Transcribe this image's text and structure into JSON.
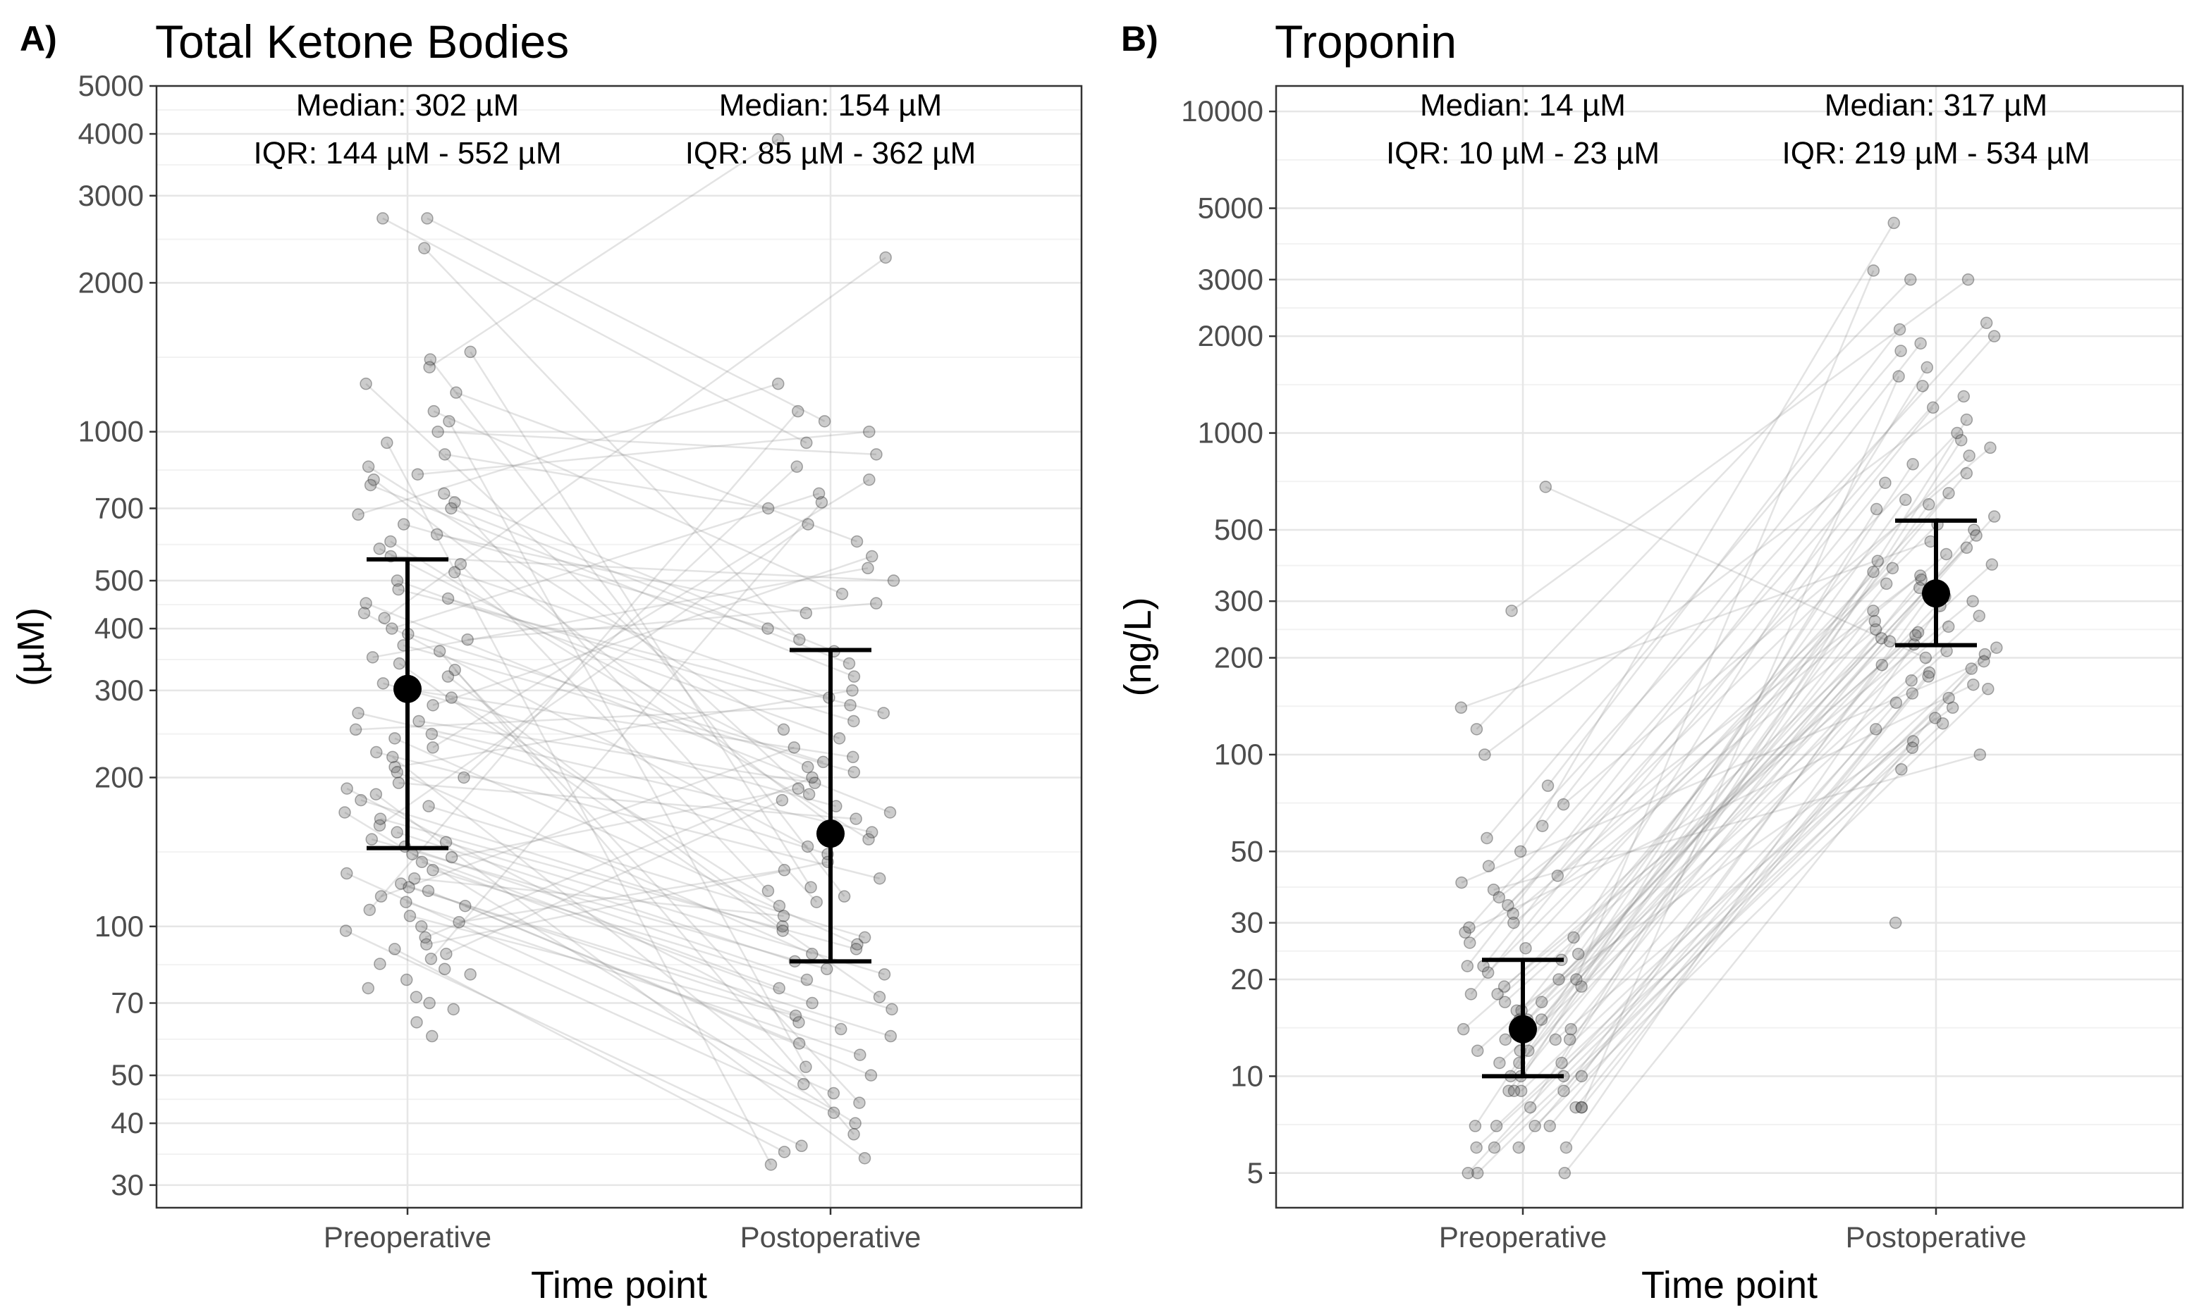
{
  "chart_data": [
    {
      "type": "scatter",
      "panel_tag": "A)",
      "title": "Total Ketone Bodies",
      "xlabel": "Time point",
      "ylabel": "(µM)",
      "y_scale": "log10",
      "ylim": [
        27,
        5000
      ],
      "yticks": [
        30,
        40,
        50,
        70,
        100,
        200,
        300,
        400,
        500,
        700,
        1000,
        2000,
        3000,
        4000,
        5000
      ],
      "categories": [
        "Preoperative",
        "Postoperative"
      ],
      "summary": [
        {
          "category": "Preoperative",
          "median": 302,
          "q1": 144,
          "q3": 552,
          "median_label": "Median: 302 µM",
          "iqr_label": "IQR: 144 µM - 552 µM"
        },
        {
          "category": "Postoperative",
          "median": 154,
          "q1": 85,
          "q3": 362,
          "median_label": "Median: 154 µM",
          "iqr_label": "IQR: 85 µM - 362 µM"
        }
      ],
      "points": {
        "Preoperative": [
          2700,
          2700,
          2350,
          1450,
          1400,
          1350,
          1250,
          1200,
          1100,
          1050,
          1000,
          950,
          900,
          850,
          820,
          800,
          780,
          750,
          720,
          700,
          680,
          650,
          620,
          600,
          580,
          560,
          540,
          520,
          500,
          480,
          460,
          450,
          430,
          420,
          400,
          390,
          380,
          370,
          360,
          350,
          340,
          330,
          320,
          310,
          300,
          290,
          280,
          270,
          260,
          250,
          245,
          240,
          230,
          225,
          220,
          210,
          205,
          200,
          195,
          190,
          185,
          180,
          175,
          170,
          165,
          160,
          155,
          150,
          148,
          145,
          140,
          138,
          135,
          130,
          128,
          125,
          122,
          120,
          118,
          115,
          112,
          110,
          108,
          105,
          102,
          100,
          98,
          95,
          92,
          90,
          88,
          86,
          84,
          82,
          80,
          78,
          75,
          72,
          70,
          68,
          64,
          60
        ],
        "Postoperative": [
          3900,
          2250,
          1250,
          1100,
          1050,
          1000,
          950,
          900,
          850,
          800,
          750,
          720,
          700,
          650,
          600,
          560,
          530,
          500,
          470,
          450,
          430,
          400,
          380,
          360,
          340,
          320,
          300,
          290,
          280,
          270,
          260,
          250,
          240,
          230,
          220,
          215,
          210,
          205,
          200,
          195,
          190,
          185,
          180,
          175,
          170,
          165,
          160,
          155,
          150,
          145,
          140,
          135,
          130,
          125,
          120,
          118,
          115,
          112,
          110,
          105,
          100,
          98,
          95,
          92,
          90,
          88,
          85,
          82,
          80,
          78,
          75,
          72,
          70,
          68,
          66,
          64,
          62,
          60,
          58,
          55,
          52,
          50,
          48,
          46,
          44,
          42,
          40,
          38,
          36,
          35,
          34,
          33
        ]
      }
    },
    {
      "type": "scatter",
      "panel_tag": "B)",
      "title": "Troponin",
      "xlabel": "Time point",
      "ylabel": "(ng/L)",
      "y_scale": "log10",
      "ylim": [
        3.9,
        12000
      ],
      "yticks": [
        5,
        10,
        20,
        30,
        50,
        100,
        200,
        300,
        500,
        1000,
        2000,
        3000,
        5000,
        10000
      ],
      "categories": [
        "Preoperative",
        "Postoperative"
      ],
      "summary": [
        {
          "category": "Preoperative",
          "median": 14,
          "q1": 10,
          "q3": 23,
          "median_label": "Median: 14 µM",
          "iqr_label": "IQR: 10 µM - 23 µM"
        },
        {
          "category": "Postoperative",
          "median": 317,
          "q1": 219,
          "q3": 534,
          "median_label": "Median: 317 µM",
          "iqr_label": "IQR: 219 µM - 534 µM"
        }
      ],
      "points": {
        "Preoperative": [
          680,
          280,
          140,
          120,
          100,
          80,
          70,
          60,
          55,
          50,
          45,
          42,
          40,
          38,
          36,
          34,
          32,
          30,
          29,
          28,
          27,
          26,
          25,
          24,
          23,
          22,
          22,
          21,
          20,
          20,
          19,
          19,
          18,
          18,
          17,
          17,
          16,
          16,
          15,
          15,
          15,
          14,
          14,
          14,
          13,
          13,
          13,
          12,
          12,
          12,
          11,
          11,
          11,
          10,
          10,
          10,
          10,
          9,
          9,
          9,
          9,
          8,
          8,
          8,
          8,
          7,
          7,
          7,
          7,
          6,
          6,
          6,
          6,
          5,
          5,
          5
        ],
        "Postoperative": [
          4500,
          3200,
          3000,
          3000,
          2200,
          2100,
          2000,
          1900,
          1800,
          1600,
          1500,
          1400,
          1300,
          1200,
          1100,
          1000,
          950,
          900,
          850,
          800,
          750,
          700,
          650,
          620,
          600,
          580,
          550,
          520,
          500,
          480,
          460,
          440,
          420,
          400,
          390,
          380,
          370,
          360,
          350,
          340,
          330,
          320,
          310,
          300,
          290,
          280,
          270,
          260,
          250,
          245,
          240,
          235,
          230,
          225,
          220,
          215,
          210,
          205,
          200,
          195,
          190,
          185,
          180,
          175,
          170,
          165,
          160,
          155,
          150,
          145,
          140,
          130,
          125,
          120,
          110,
          105,
          100,
          90,
          30
        ]
      }
    }
  ]
}
